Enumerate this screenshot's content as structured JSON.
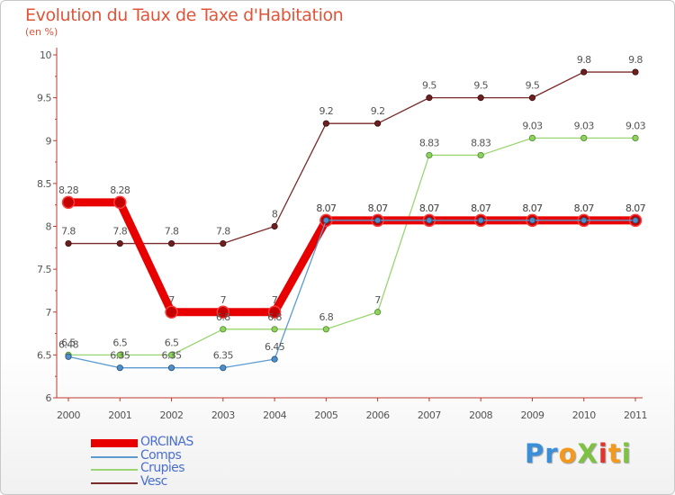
{
  "chart_data": {
    "type": "line",
    "title": "Evolution du Taux de Taxe d'Habitation",
    "subtitle": "(en %)",
    "xlabel": "",
    "ylabel": "",
    "categories": [
      "2000",
      "2001",
      "2002",
      "2003",
      "2004",
      "2005",
      "2006",
      "2007",
      "2008",
      "2009",
      "2010",
      "2011"
    ],
    "ylim": [
      6,
      10
    ],
    "yticks": [
      "6",
      "6.5",
      "7",
      "7.5",
      "8",
      "8.5",
      "9",
      "9.5",
      "10"
    ],
    "grid": false,
    "legend_position": "bottom-left",
    "series": [
      {
        "name": "ORCINAS",
        "color": "#e80000",
        "values": [
          8.28,
          8.28,
          7,
          7,
          7,
          8.07,
          8.07,
          8.07,
          8.07,
          8.07,
          8.07,
          8.07
        ],
        "labels": [
          "8.28",
          "8.28",
          "7",
          "7",
          "7",
          "8.07",
          "8.07",
          "8.07",
          "8.07",
          "8.07",
          "8.07",
          "8.07"
        ]
      },
      {
        "name": "Comps",
        "color": "#5b9bd0",
        "values": [
          6.48,
          6.35,
          6.35,
          6.35,
          6.45,
          8.07,
          8.07,
          8.07,
          8.07,
          8.07,
          8.07,
          8.07
        ],
        "labels": [
          "6.48",
          "6.35",
          "6.35",
          "6.35",
          "6.45",
          "8.07",
          "8.07",
          "8.07",
          "8.07",
          "8.07",
          "8.07",
          "8.07"
        ]
      },
      {
        "name": "Crupies",
        "color": "#9bd472",
        "values": [
          6.5,
          6.5,
          6.5,
          6.8,
          6.8,
          6.8,
          7,
          8.83,
          8.83,
          9.03,
          9.03,
          9.03
        ],
        "labels": [
          "6.5",
          "6.5",
          "6.5",
          "6.8",
          "6.8",
          "6.8",
          "7",
          "8.83",
          "8.83",
          "9.03",
          "9.03",
          "9.03"
        ]
      },
      {
        "name": "Vesc",
        "color": "#7b2a2a",
        "values": [
          7.8,
          7.8,
          7.8,
          7.8,
          8,
          9.2,
          9.2,
          9.5,
          9.5,
          9.5,
          9.8,
          9.8
        ],
        "labels": [
          "7.8",
          "7.8",
          "7.8",
          "7.8",
          "8",
          "9.2",
          "9.2",
          "9.5",
          "9.5",
          "9.5",
          "9.8",
          "9.8"
        ]
      }
    ]
  },
  "logo": {
    "text": "ProXiti",
    "letters": [
      {
        "ch": "P",
        "color": "#3b8fd9"
      },
      {
        "ch": "r",
        "color": "#3b8fd9"
      },
      {
        "ch": "o",
        "color": "#f39a1e"
      },
      {
        "ch": "X",
        "color": "#7ec242"
      },
      {
        "ch": "i",
        "color": "#e2342d"
      },
      {
        "ch": "t",
        "color": "#f39a1e"
      },
      {
        "ch": "i",
        "color": "#7ec242"
      }
    ]
  }
}
